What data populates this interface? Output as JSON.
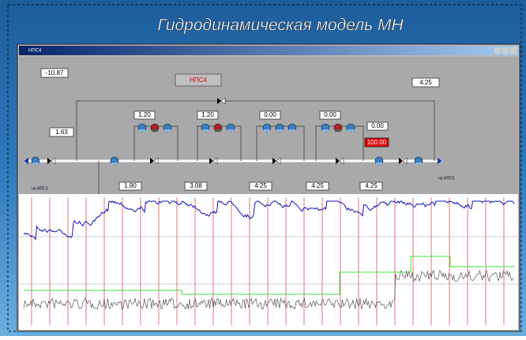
{
  "slide_title": "Гидродинамическая модель МН",
  "window_title": "НПС4",
  "station": "НПС4",
  "inlet_pressure": "-10.87",
  "outlet_pressure": "4.25",
  "bypass_flow": "1.63",
  "pump_group_values": [
    "1.20",
    "1.20",
    "0.00",
    "0.00",
    "0.00"
  ],
  "valve_opening": "100.00",
  "section_values": [
    "1.90",
    "3.08",
    "4.25",
    "4.25",
    "4.25"
  ],
  "from_label": "на НПС3",
  "to_label": "на НПС5"
}
